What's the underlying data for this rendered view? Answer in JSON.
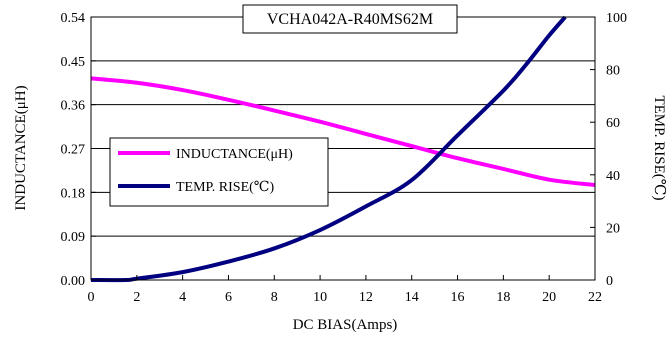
{
  "chart_data": {
    "type": "line",
    "title": "VCHA042A-R40MS62M",
    "xlabel": "DC BIAS(Amps)",
    "ylabel_left": "INDUCTANCE(μH)",
    "ylabel_right": "TEMP. RISE(℃)",
    "xlim": [
      0,
      22
    ],
    "ylim_left": [
      0,
      0.54
    ],
    "ylim_right": [
      0,
      100
    ],
    "x_ticks": [
      "0",
      "2",
      "4",
      "6",
      "8",
      "10",
      "12",
      "14",
      "16",
      "18",
      "20",
      "22"
    ],
    "y_left_ticks": [
      "0.00",
      "0.09",
      "0.18",
      "0.27",
      "0.36",
      "0.45",
      "0.54"
    ],
    "y_right_ticks": [
      "0",
      "20",
      "40",
      "60",
      "80",
      "100"
    ],
    "grid": "horizontal",
    "legend_position": "left-middle",
    "series": [
      {
        "name": "INDUCTANCE(μH)",
        "axis": "left",
        "color": "#ff00ff",
        "x": [
          0,
          2,
          4,
          6,
          8,
          10,
          12,
          14,
          16,
          18,
          20,
          22
        ],
        "y": [
          0.414,
          0.405,
          0.39,
          0.37,
          0.348,
          0.325,
          0.3,
          0.275,
          0.25,
          0.228,
          0.206,
          0.195
        ]
      },
      {
        "name": "TEMP. RISE(℃)",
        "axis": "right",
        "color": "#000080",
        "x": [
          0,
          1.5,
          2,
          4,
          6,
          8,
          10,
          12,
          14,
          16,
          18,
          19,
          20,
          20.7
        ],
        "y": [
          0,
          0,
          0.5,
          3,
          7,
          12,
          19,
          28,
          38,
          55,
          72,
          82,
          93,
          100
        ]
      }
    ]
  }
}
